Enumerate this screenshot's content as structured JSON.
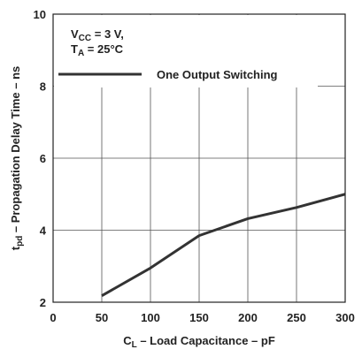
{
  "chart_data": {
    "type": "line",
    "title": "",
    "xlabel": {
      "main": "C",
      "sub": "L",
      "rest": " – Load Capacitance – pF"
    },
    "ylabel": {
      "main": "t",
      "sub": "pd",
      "rest": " – Propagation Delay Time – ns"
    },
    "xlim": [
      0,
      300
    ],
    "ylim": [
      2,
      10
    ],
    "x_ticks": [
      0,
      50,
      100,
      150,
      200,
      250,
      300
    ],
    "y_ticks": [
      2,
      4,
      6,
      8,
      10
    ],
    "grid": true,
    "conditions": [
      {
        "main": "V",
        "sub": "CC",
        "rest": " = 3 V,"
      },
      {
        "main": "T",
        "sub": "A",
        "rest": " = 25°C"
      }
    ],
    "series": [
      {
        "name": "One Output Switching",
        "x": [
          50,
          100,
          150,
          200,
          250,
          300
        ],
        "y": [
          2.18,
          2.95,
          3.85,
          4.32,
          4.63,
          5.0
        ]
      }
    ],
    "line_color": "#333333"
  }
}
